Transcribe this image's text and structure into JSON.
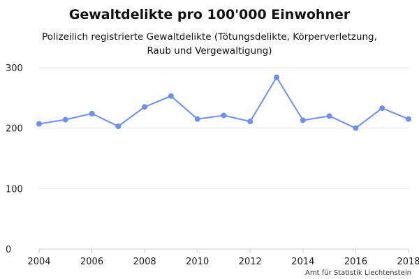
{
  "chart_data": {
    "type": "line",
    "title": "Gewaltdelikte pro 100'000 Einwohner",
    "subtitle_lines": [
      "Polizeilich registrierte Gewaltdelikte (Tötungsdelikte, Körperverletzung,",
      "Raub und Vergewaltigung)"
    ],
    "xlabel": "",
    "ylabel": "",
    "x": [
      2004,
      2005,
      2006,
      2007,
      2008,
      2009,
      2010,
      2011,
      2012,
      2013,
      2014,
      2015,
      2016,
      2017,
      2018
    ],
    "series": [
      {
        "name": "",
        "values": [
          207,
          214,
          224,
          203,
          235,
          253,
          215,
          221,
          211,
          284,
          213,
          220,
          200,
          233,
          215
        ],
        "color": "#6b8ff5"
      }
    ],
    "xlim": [
      2004,
      2018
    ],
    "ylim": [
      0,
      300
    ],
    "x_ticks": [
      2004,
      2006,
      2008,
      2010,
      2012,
      2014,
      2016,
      2018
    ],
    "y_ticks": [
      0,
      100,
      200,
      300
    ],
    "grid": "horizontal",
    "legend": "none",
    "source": "Amt für Statistik Liechtenstein"
  }
}
